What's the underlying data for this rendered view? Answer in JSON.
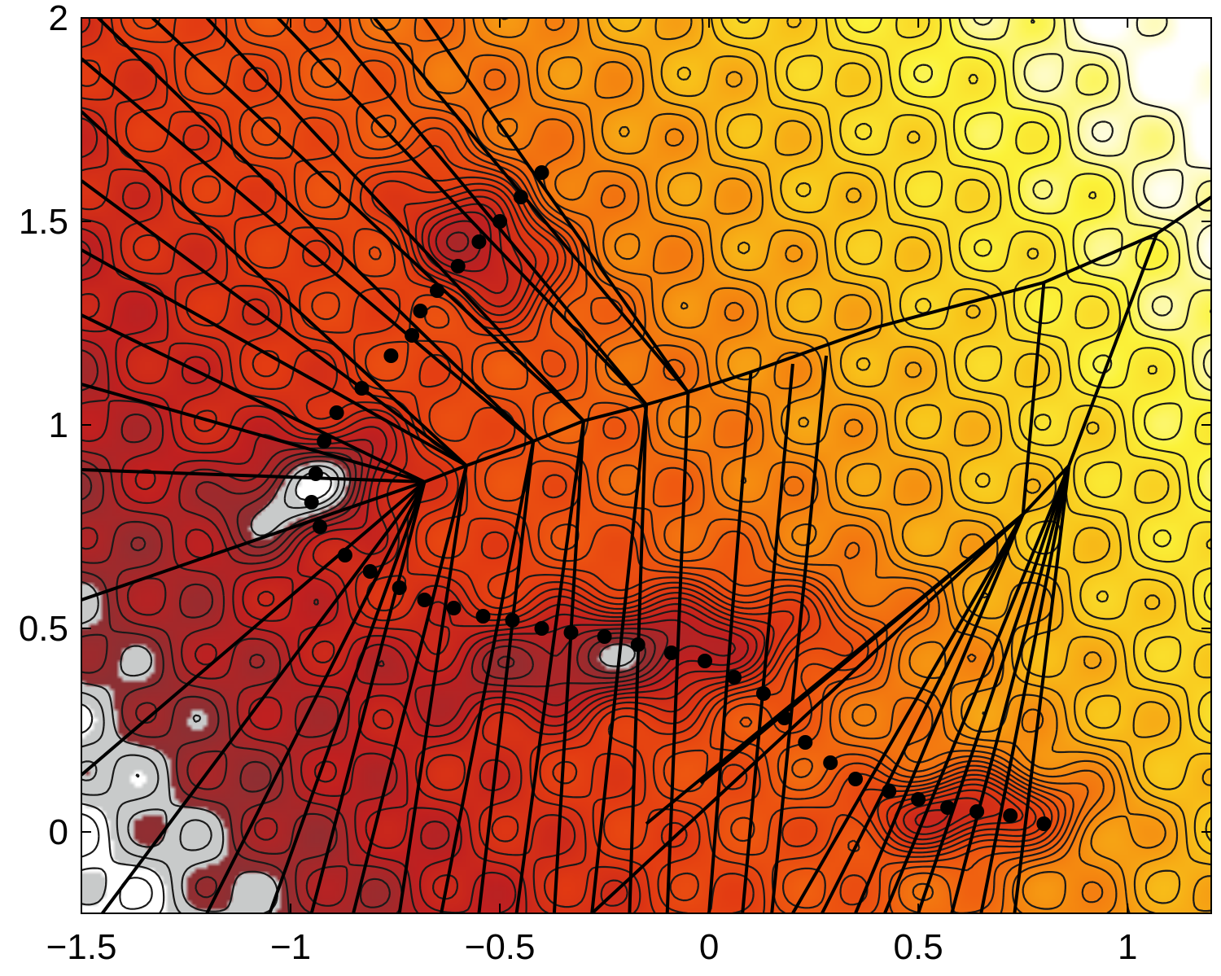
{
  "chart_data": {
    "type": "heatmap",
    "title": "",
    "xlabel": "",
    "ylabel": "",
    "xlim": [
      -1.5,
      1.2
    ],
    "ylim": [
      -0.2,
      2.0
    ],
    "x_ticks": [
      {
        "value": -1.5,
        "label": "−1.5"
      },
      {
        "value": -1.0,
        "label": "−1"
      },
      {
        "value": -0.5,
        "label": "−0.5"
      },
      {
        "value": 0.0,
        "label": "0"
      },
      {
        "value": 0.5,
        "label": "0.5"
      },
      {
        "value": 1.0,
        "label": "1"
      }
    ],
    "y_ticks": [
      {
        "value": 0.0,
        "label": "0"
      },
      {
        "value": 0.5,
        "label": "0.5"
      },
      {
        "value": 1.0,
        "label": "1"
      },
      {
        "value": 1.5,
        "label": "1.5"
      },
      {
        "value": 2.0,
        "label": "2"
      }
    ],
    "colormap": [
      "#8b3034",
      "#c02020",
      "#e23a12",
      "#ef5a10",
      "#f58a10",
      "#f8c41a",
      "#fbf33a",
      "#ffffff"
    ],
    "wells": [
      {
        "x": -0.55,
        "y": 1.45,
        "sx": 0.14,
        "sy": 0.22,
        "rot": -0.85,
        "depth": 1.0
      },
      {
        "x": -0.15,
        "y": 0.45,
        "sx": 0.48,
        "sy": 0.13,
        "rot": -0.12,
        "depth": 1.0
      },
      {
        "x": 0.62,
        "y": 0.05,
        "sx": 0.26,
        "sy": 0.1,
        "rot": -0.05,
        "depth": 1.0
      },
      {
        "x": -0.95,
        "y": 0.85,
        "sx": 0.22,
        "sy": 0.12,
        "rot": -0.4,
        "depth": 0.8
      }
    ],
    "grid": false,
    "legend": "none",
    "series": [
      {
        "name": "",
        "marker": "dot",
        "points": [
          [
            -0.4,
            1.62
          ],
          [
            -0.45,
            1.56
          ],
          [
            -0.5,
            1.5
          ],
          [
            -0.55,
            1.45
          ],
          [
            -0.6,
            1.39
          ],
          [
            -0.65,
            1.33
          ],
          [
            -0.69,
            1.28
          ],
          [
            -0.71,
            1.22
          ],
          [
            -0.76,
            1.17
          ],
          [
            -0.83,
            1.09
          ],
          [
            -0.89,
            1.03
          ],
          [
            -0.92,
            0.96
          ],
          [
            -0.94,
            0.88
          ],
          [
            -0.95,
            0.81
          ],
          [
            -0.93,
            0.75
          ],
          [
            -0.87,
            0.68
          ],
          [
            -0.81,
            0.64
          ],
          [
            -0.74,
            0.6
          ],
          [
            -0.68,
            0.57
          ],
          [
            -0.61,
            0.55
          ],
          [
            -0.54,
            0.53
          ],
          [
            -0.47,
            0.52
          ],
          [
            -0.4,
            0.5
          ],
          [
            -0.33,
            0.49
          ],
          [
            -0.25,
            0.48
          ],
          [
            -0.17,
            0.46
          ],
          [
            -0.09,
            0.44
          ],
          [
            -0.01,
            0.42
          ],
          [
            0.06,
            0.38
          ],
          [
            0.13,
            0.34
          ],
          [
            0.18,
            0.28
          ],
          [
            0.23,
            0.22
          ],
          [
            0.29,
            0.17
          ],
          [
            0.35,
            0.13
          ],
          [
            0.43,
            0.1
          ],
          [
            0.5,
            0.08
          ],
          [
            0.57,
            0.06
          ],
          [
            0.64,
            0.05
          ],
          [
            0.72,
            0.04
          ],
          [
            0.8,
            0.02
          ]
        ]
      }
    ],
    "lines": [
      [
        [
          -1.5,
          0.57
        ],
        [
          -0.68,
          0.86
        ]
      ],
      [
        [
          -1.5,
          0.89
        ],
        [
          -0.68,
          0.86
        ]
      ],
      [
        [
          -1.5,
          1.1
        ],
        [
          -0.68,
          0.86
        ]
      ],
      [
        [
          -1.5,
          1.27
        ],
        [
          -0.68,
          0.86
        ]
      ],
      [
        [
          -1.5,
          1.43
        ],
        [
          -0.58,
          0.9
        ]
      ],
      [
        [
          -1.5,
          1.6
        ],
        [
          -0.58,
          0.9
        ]
      ],
      [
        [
          -1.5,
          1.77
        ],
        [
          -0.58,
          0.9
        ]
      ],
      [
        [
          -1.5,
          1.9
        ],
        [
          -0.42,
          0.96
        ]
      ],
      [
        [
          -1.46,
          2.0
        ],
        [
          -0.42,
          0.96
        ]
      ],
      [
        [
          -1.33,
          2.0
        ],
        [
          -0.3,
          1.01
        ]
      ],
      [
        [
          -1.2,
          2.0
        ],
        [
          -0.3,
          1.01
        ]
      ],
      [
        [
          -1.03,
          2.0
        ],
        [
          -0.15,
          1.05
        ]
      ],
      [
        [
          -0.92,
          2.0
        ],
        [
          -0.15,
          1.05
        ]
      ],
      [
        [
          -0.8,
          2.0
        ],
        [
          -0.05,
          1.08
        ]
      ],
      [
        [
          -0.68,
          2.0
        ],
        [
          -0.05,
          1.08
        ]
      ],
      [
        [
          -0.68,
          0.86
        ],
        [
          -0.58,
          0.9
        ],
        [
          -0.42,
          0.96
        ],
        [
          -0.3,
          1.01
        ],
        [
          -0.15,
          1.05
        ],
        [
          -0.05,
          1.08
        ],
        [
          0.1,
          1.13
        ],
        [
          0.4,
          1.24
        ],
        [
          0.8,
          1.35
        ],
        [
          1.07,
          1.47
        ],
        [
          1.2,
          1.56
        ]
      ],
      [
        [
          0.8,
          1.35
        ],
        [
          0.75,
          0.78
        ]
      ],
      [
        [
          1.07,
          1.47
        ],
        [
          0.86,
          0.9
        ]
      ],
      [
        [
          0.75,
          0.78
        ],
        [
          0.86,
          0.9
        ]
      ],
      [
        [
          -1.5,
          0.14
        ],
        [
          -0.68,
          0.86
        ]
      ],
      [
        [
          -1.45,
          -0.2
        ],
        [
          -0.68,
          0.86
        ]
      ],
      [
        [
          -1.2,
          -0.2
        ],
        [
          -0.68,
          0.86
        ]
      ],
      [
        [
          -1.05,
          -0.2
        ],
        [
          -0.68,
          0.86
        ]
      ],
      [
        [
          -0.95,
          -0.2
        ],
        [
          -0.68,
          0.86
        ]
      ],
      [
        [
          -0.85,
          -0.2
        ],
        [
          -0.58,
          0.9
        ]
      ],
      [
        [
          -0.74,
          -0.2
        ],
        [
          -0.58,
          0.9
        ]
      ],
      [
        [
          -0.64,
          -0.2
        ],
        [
          -0.42,
          0.96
        ]
      ],
      [
        [
          -0.55,
          -0.2
        ],
        [
          -0.42,
          0.96
        ]
      ],
      [
        [
          -0.46,
          -0.2
        ],
        [
          -0.3,
          1.01
        ]
      ],
      [
        [
          -0.37,
          -0.2
        ],
        [
          -0.3,
          1.01
        ]
      ],
      [
        [
          -0.28,
          -0.2
        ],
        [
          -0.15,
          1.05
        ]
      ],
      [
        [
          -0.19,
          -0.2
        ],
        [
          -0.15,
          1.05
        ]
      ],
      [
        [
          -0.1,
          -0.2
        ],
        [
          -0.05,
          1.08
        ]
      ],
      [
        [
          0.0,
          -0.2
        ],
        [
          0.1,
          1.13
        ]
      ],
      [
        [
          0.08,
          -0.2
        ],
        [
          0.2,
          1.15
        ]
      ],
      [
        [
          0.15,
          -0.2
        ],
        [
          0.28,
          1.17
        ]
      ],
      [
        [
          -0.28,
          -0.2
        ],
        [
          0.75,
          0.78
        ]
      ],
      [
        [
          -0.15,
          0.02
        ],
        [
          0.75,
          0.78
        ]
      ],
      [
        [
          -0.02,
          0.12
        ],
        [
          0.75,
          0.78
        ]
      ],
      [
        [
          0.2,
          -0.2
        ],
        [
          0.75,
          0.78
        ]
      ],
      [
        [
          0.27,
          -0.2
        ],
        [
          0.75,
          0.78
        ]
      ],
      [
        [
          0.35,
          -0.2
        ],
        [
          0.75,
          0.78
        ]
      ],
      [
        [
          0.42,
          -0.2
        ],
        [
          0.86,
          0.9
        ]
      ],
      [
        [
          0.5,
          -0.2
        ],
        [
          0.86,
          0.9
        ]
      ],
      [
        [
          0.58,
          -0.2
        ],
        [
          0.86,
          0.9
        ]
      ],
      [
        [
          0.65,
          -0.2
        ],
        [
          0.86,
          0.9
        ]
      ],
      [
        [
          0.73,
          -0.2
        ],
        [
          0.86,
          0.9
        ]
      ]
    ]
  }
}
